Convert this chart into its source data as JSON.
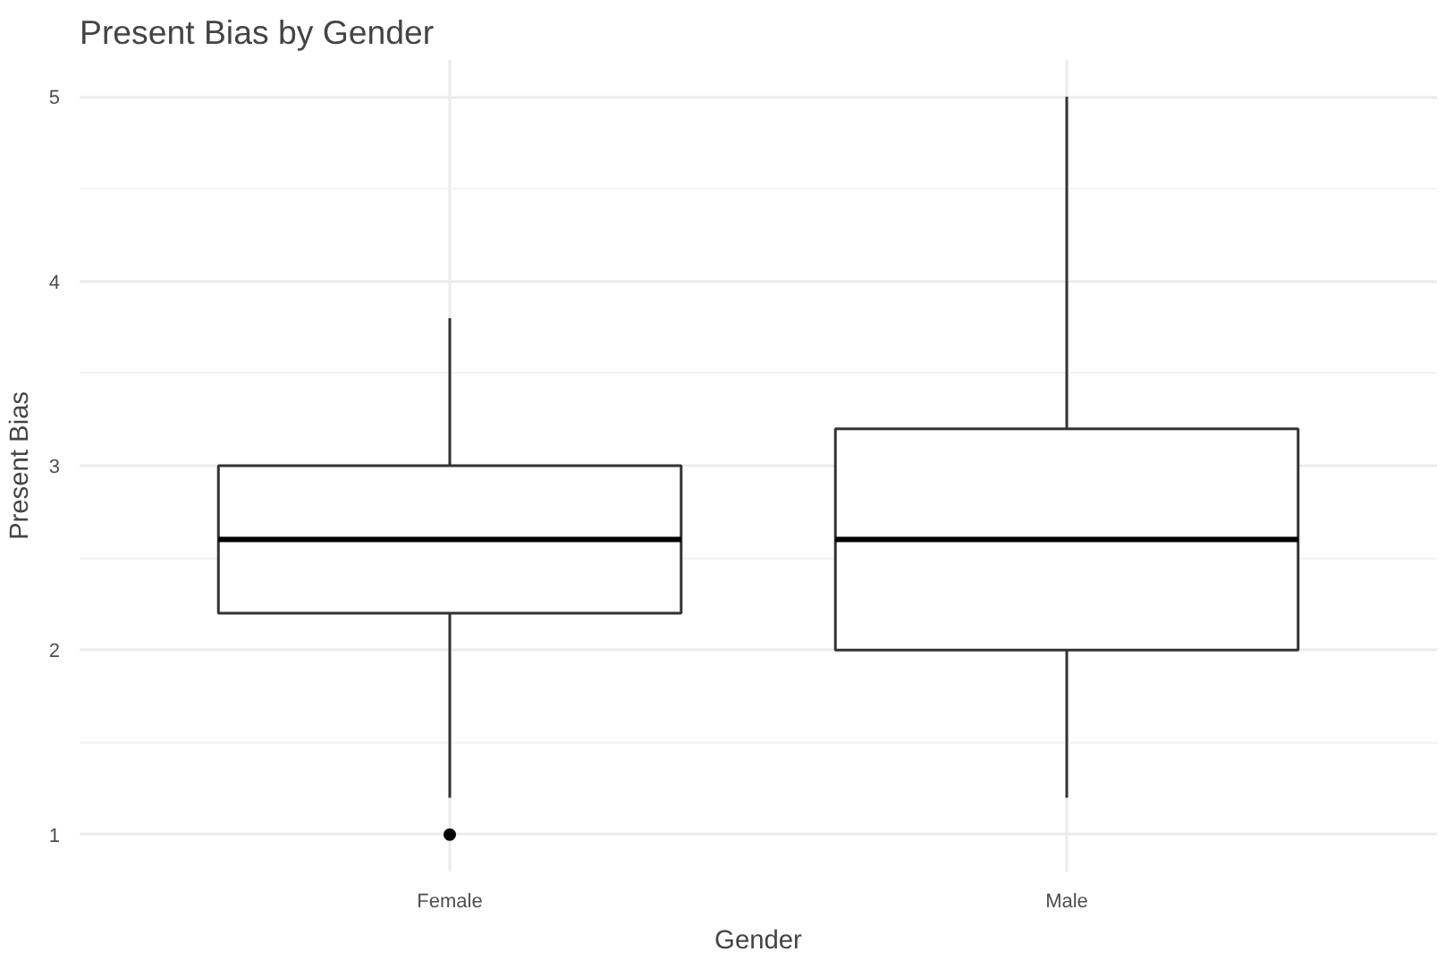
{
  "chart_data": {
    "type": "box",
    "title": "Present Bias by Gender",
    "xlabel": "Gender",
    "ylabel": "Present Bias",
    "categories": [
      "Female",
      "Male"
    ],
    "boxes": [
      {
        "low": 1.2,
        "q1": 2.2,
        "median": 2.6,
        "q3": 3.0,
        "high": 3.8,
        "outliers": [
          1.0
        ]
      },
      {
        "low": 1.2,
        "q1": 2.0,
        "median": 2.6,
        "q3": 3.2,
        "high": 5.0
      }
    ],
    "ylim": [
      0.8,
      5.2
    ],
    "yticks": [
      1,
      2,
      3,
      4,
      5
    ],
    "grid": true
  }
}
